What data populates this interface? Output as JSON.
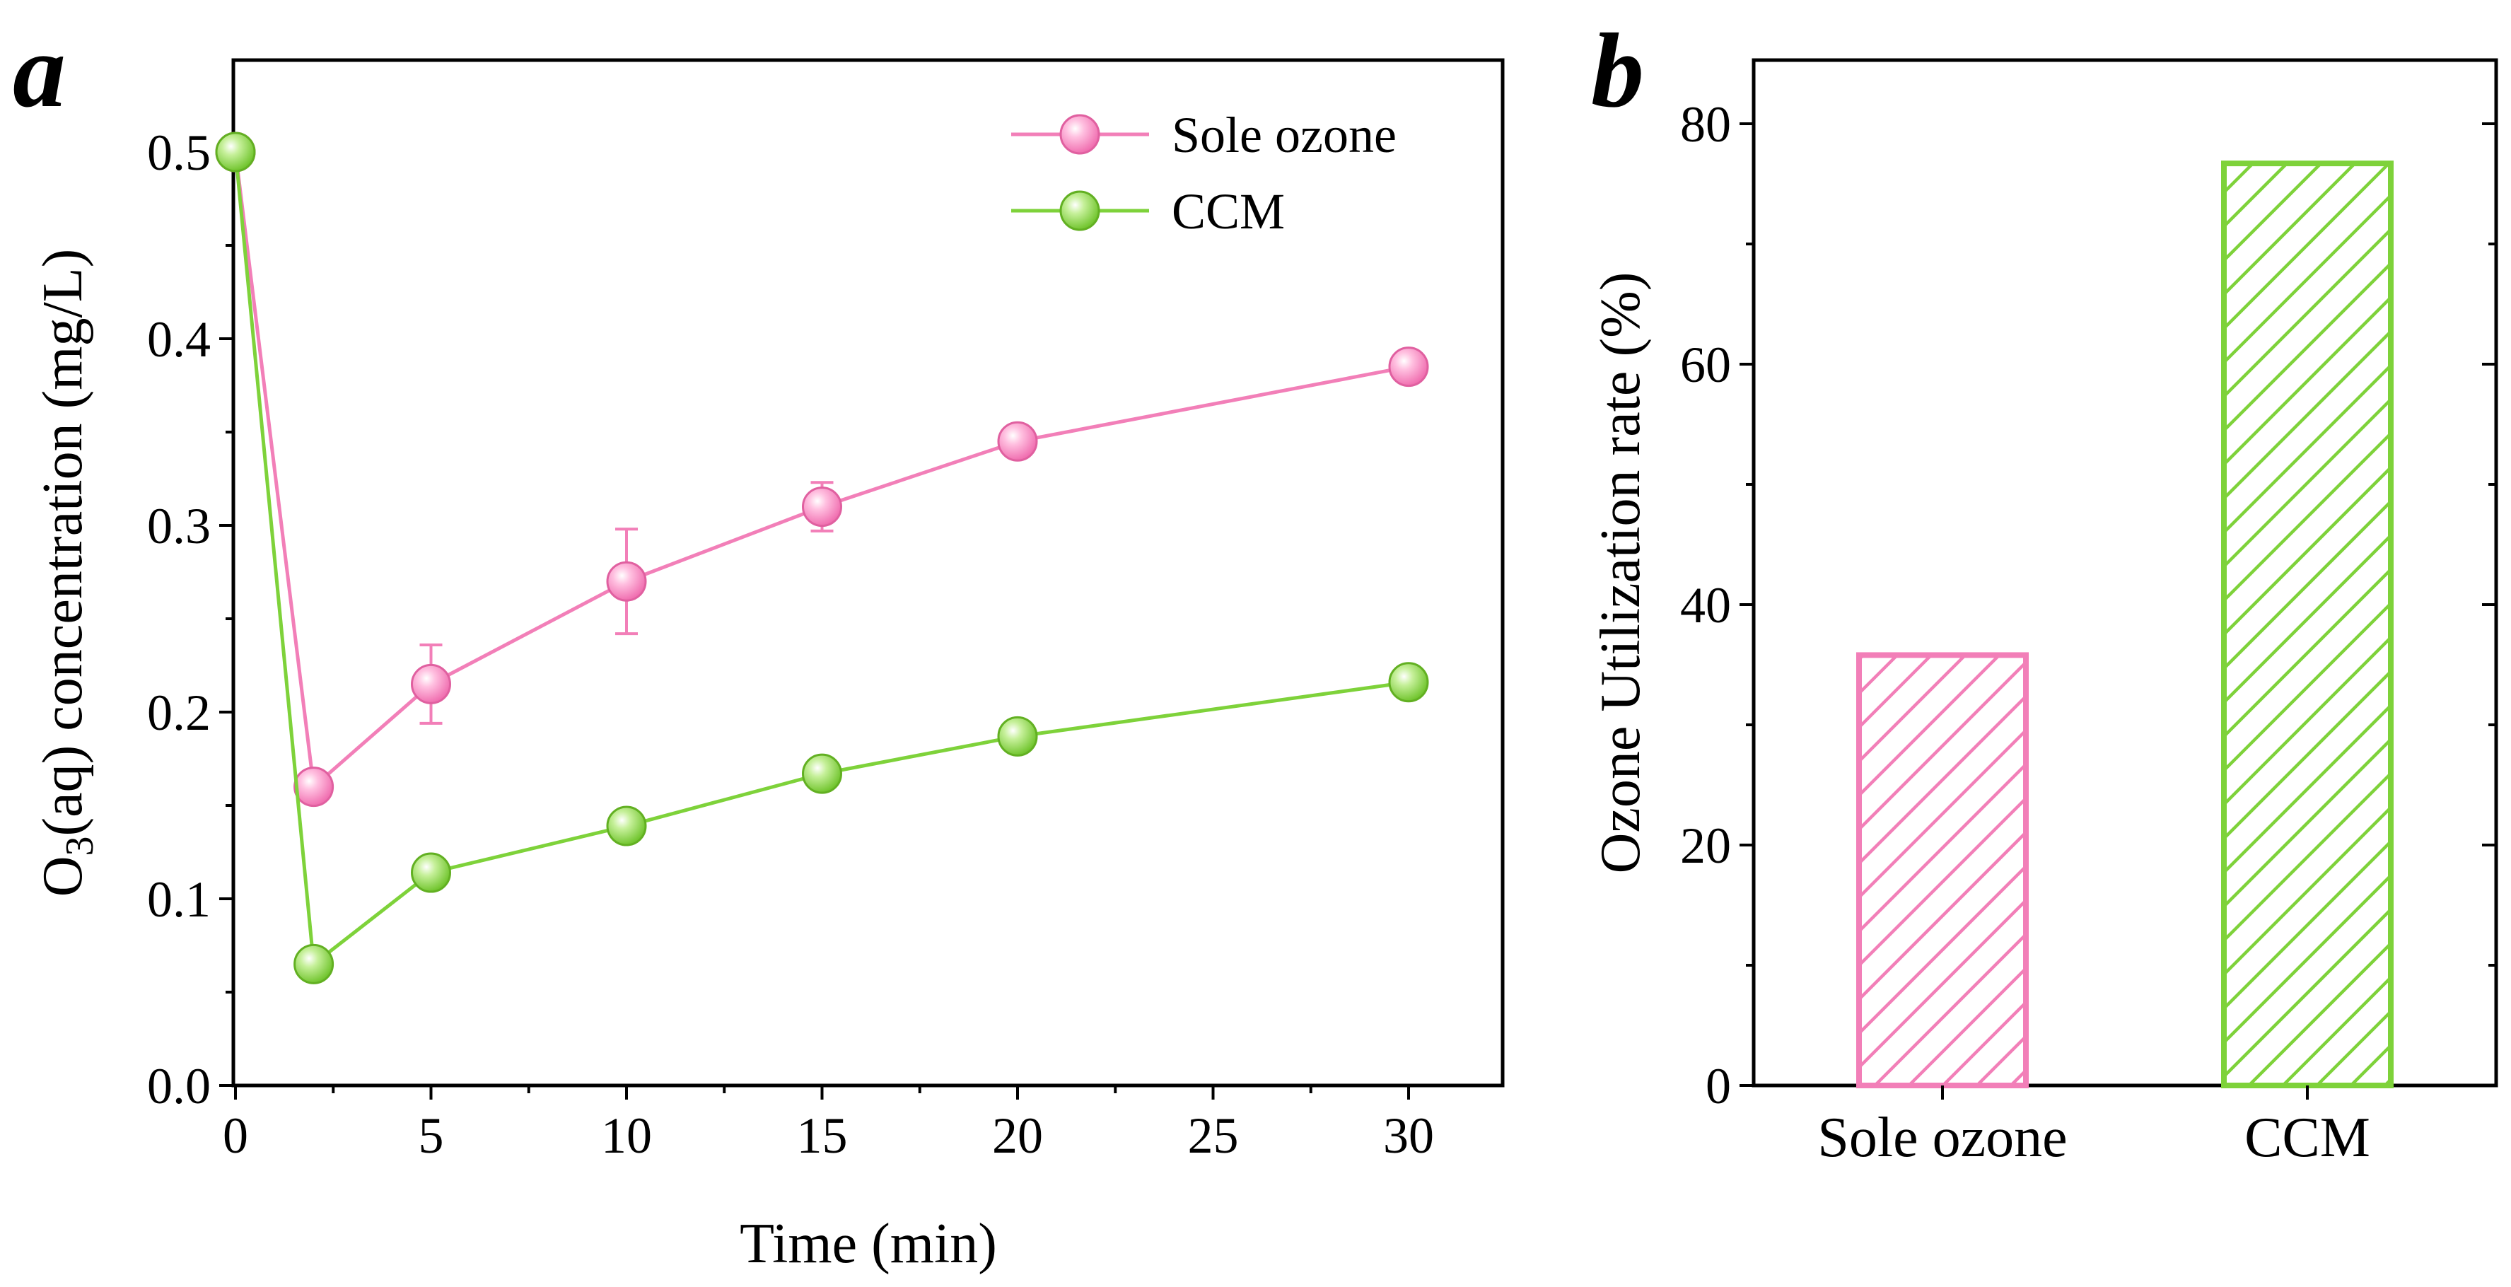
{
  "colors": {
    "sole_ozone": "#f27fb8",
    "ccm": "#7ed23a",
    "axis": "#000000",
    "background": "#ffffff"
  },
  "chart_data": [
    {
      "panel": "a",
      "type": "line",
      "xlabel": "Time (min)",
      "ylabel_main": "O",
      "ylabel_sub": "3",
      "ylabel_rest": "(aq) concentration (mg/L)",
      "xlim": [
        0,
        32
      ],
      "ylim": [
        0,
        0.55
      ],
      "xticks": [
        0,
        5,
        10,
        15,
        20,
        25,
        30
      ],
      "xtick_labels": [
        "0",
        "5",
        "10",
        "15",
        "20",
        "25",
        "30"
      ],
      "yticks": [
        0.0,
        0.1,
        0.2,
        0.3,
        0.4,
        0.5
      ],
      "ytick_labels": [
        "0.0",
        "0.1",
        "0.2",
        "0.3",
        "0.4",
        "0.5"
      ],
      "x": [
        0,
        2,
        5,
        10,
        15,
        20,
        30
      ],
      "legend_position": "top-right",
      "series": [
        {
          "name": "Sole ozone",
          "color_key": "sole_ozone",
          "values": [
            0.5,
            0.16,
            0.215,
            0.27,
            0.31,
            0.345,
            0.385
          ],
          "errors": [
            0,
            0,
            0.021,
            0.028,
            0.013,
            0,
            0
          ]
        },
        {
          "name": "CCM",
          "color_key": "ccm",
          "values": [
            0.5,
            0.065,
            0.114,
            0.139,
            0.167,
            0.187,
            0.216
          ],
          "errors": [
            0,
            0,
            0,
            0.003,
            0,
            0,
            0
          ]
        }
      ]
    },
    {
      "panel": "b",
      "type": "bar",
      "ylabel": "Ozone Utilization rate (%)",
      "ylim": [
        0,
        85
      ],
      "yticks": [
        0,
        20,
        40,
        60,
        80
      ],
      "ytick_labels": [
        "0",
        "20",
        "40",
        "60",
        "80"
      ],
      "categories": [
        "Sole ozone",
        "CCM"
      ],
      "values": [
        35.8,
        76.7
      ],
      "color_keys": [
        "sole_ozone",
        "ccm"
      ],
      "pattern": "diagonal-hatch"
    }
  ]
}
